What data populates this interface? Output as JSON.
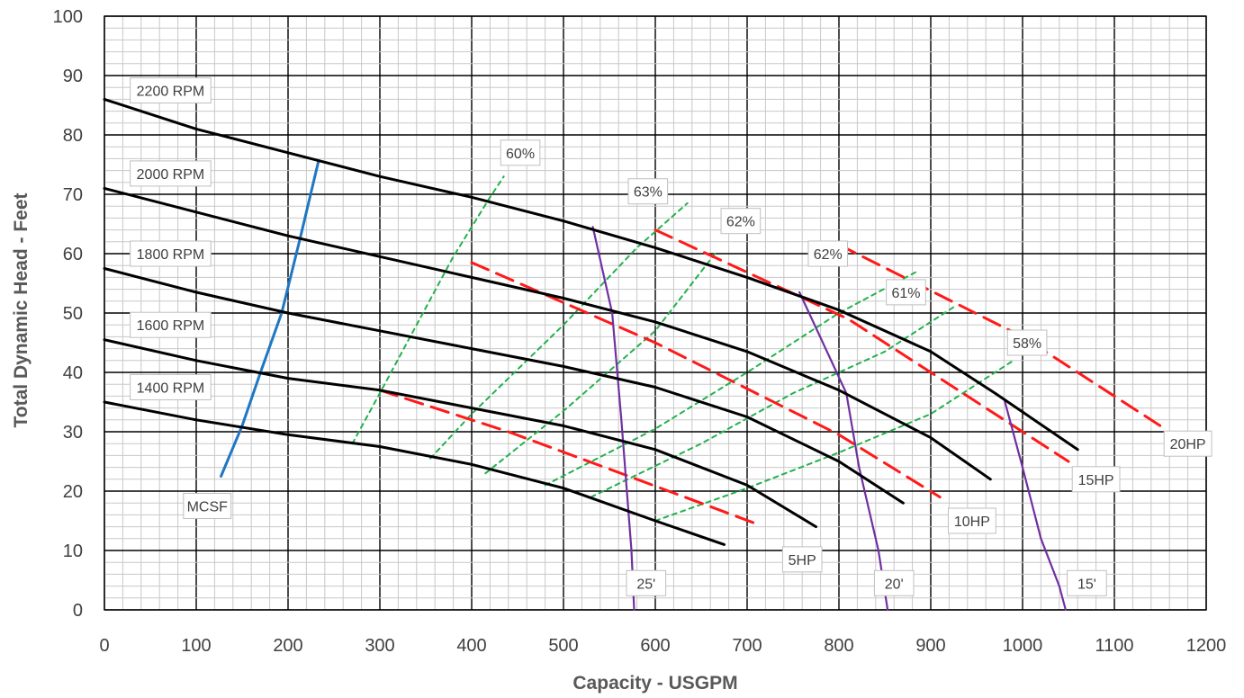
{
  "chart_data": {
    "type": "line",
    "title": "",
    "xlabel": "Capacity - USGPM",
    "ylabel": "Total Dynamic Head - Feet",
    "xlim": [
      0,
      1200
    ],
    "ylim": [
      0,
      100
    ],
    "xticks": [
      0,
      100,
      200,
      300,
      400,
      500,
      600,
      700,
      800,
      900,
      1000,
      1100,
      1200
    ],
    "yticks": [
      0,
      10,
      20,
      30,
      40,
      50,
      60,
      70,
      80,
      90,
      100
    ],
    "grid": true,
    "colors": {
      "rpm": "#000000",
      "mcsf": "#1f77c4",
      "efficiency": "#22b14c",
      "horsepower": "#ff1a1a",
      "npsh": "#7030a0"
    },
    "series": [
      {
        "group": "rpm",
        "name": "2200 RPM",
        "x": [
          0,
          100,
          200,
          300,
          400,
          500,
          600,
          700,
          800,
          900,
          970,
          1060
        ],
        "y": [
          86,
          81,
          77,
          73,
          69.5,
          65.5,
          61,
          56,
          50.5,
          43.5,
          36.5,
          27
        ]
      },
      {
        "group": "rpm",
        "name": "2000 RPM",
        "x": [
          0,
          100,
          200,
          300,
          400,
          500,
          600,
          700,
          800,
          900,
          965
        ],
        "y": [
          71,
          67,
          63,
          59.5,
          56,
          52.5,
          48.5,
          43.5,
          37,
          29,
          22
        ]
      },
      {
        "group": "rpm",
        "name": "1800 RPM",
        "x": [
          0,
          100,
          200,
          300,
          400,
          500,
          600,
          700,
          800,
          870
        ],
        "y": [
          57.5,
          53.5,
          50,
          47,
          44,
          41,
          37.5,
          32.5,
          25,
          18
        ]
      },
      {
        "group": "rpm",
        "name": "1600 RPM",
        "x": [
          0,
          100,
          200,
          300,
          400,
          500,
          600,
          700,
          775
        ],
        "y": [
          45.5,
          42,
          39,
          37,
          34,
          31,
          27,
          21,
          14
        ]
      },
      {
        "group": "rpm",
        "name": "1400 RPM",
        "x": [
          0,
          100,
          200,
          300,
          400,
          500,
          600,
          675
        ],
        "y": [
          35,
          32,
          29.5,
          27.5,
          24.5,
          20.5,
          15,
          11
        ]
      },
      {
        "group": "mcsf",
        "name": "MCSF",
        "x": [
          127,
          150,
          170,
          193,
          213,
          233
        ],
        "y": [
          22.5,
          31,
          40,
          50,
          62.5,
          75.5
        ]
      },
      {
        "group": "efficiency",
        "name": "60%",
        "x": [
          270,
          300,
          340,
          380,
          420,
          435
        ],
        "y": [
          28,
          36.5,
          48,
          59.5,
          69.5,
          73
        ]
      },
      {
        "group": "efficiency",
        "name": "63%",
        "x": [
          355,
          400,
          500,
          580,
          635
        ],
        "y": [
          25.5,
          33,
          48,
          61,
          68.5
        ]
      },
      {
        "group": "efficiency",
        "name": "62%",
        "x": [
          415,
          500,
          600,
          665
        ],
        "y": [
          23,
          33.5,
          47,
          60
        ]
      },
      {
        "group": "efficiency",
        "name": "62%",
        "x": [
          480,
          600,
          700,
          800,
          885
        ],
        "y": [
          21,
          30.5,
          40,
          50,
          57
        ]
      },
      {
        "group": "efficiency",
        "name": "61%",
        "x": [
          530,
          650,
          750,
          850,
          925
        ],
        "y": [
          19,
          28,
          36.5,
          43.5,
          51
        ]
      },
      {
        "group": "efficiency",
        "name": "58%",
        "x": [
          600,
          700,
          800,
          900,
          990
        ],
        "y": [
          15,
          20.5,
          26.5,
          33,
          42
        ]
      },
      {
        "group": "horsepower",
        "name": "5HP",
        "x": [
          300,
          440,
          580,
          710
        ],
        "y": [
          37,
          30,
          22,
          14.5
        ]
      },
      {
        "group": "horsepower",
        "name": "10HP",
        "x": [
          400,
          600,
          800,
          910
        ],
        "y": [
          58.5,
          45,
          29.5,
          19
        ]
      },
      {
        "group": "horsepower",
        "name": "15HP",
        "x": [
          600,
          810,
          1050
        ],
        "y": [
          64,
          49,
          25
        ]
      },
      {
        "group": "horsepower",
        "name": "20HP",
        "x": [
          800,
          1000,
          1155
        ],
        "y": [
          61.5,
          46,
          30.5
        ]
      },
      {
        "group": "npsh",
        "name": "25'",
        "x": [
          532,
          553,
          563,
          574,
          577
        ],
        "y": [
          64.5,
          50,
          32,
          10,
          0
        ]
      },
      {
        "group": "npsh",
        "name": "20'",
        "x": [
          757,
          808,
          822,
          843,
          853
        ],
        "y": [
          53.5,
          36.5,
          24,
          10,
          0
        ]
      },
      {
        "group": "npsh",
        "name": "15'",
        "x": [
          980,
          1000,
          1020,
          1040,
          1047
        ],
        "y": [
          35.5,
          24,
          12,
          4,
          0
        ]
      }
    ],
    "labels": [
      {
        "text": "2200 RPM",
        "x": 72,
        "y": 87.5
      },
      {
        "text": "2000 RPM",
        "x": 72,
        "y": 73.5
      },
      {
        "text": "1800 RPM",
        "x": 72,
        "y": 60
      },
      {
        "text": "1600 RPM",
        "x": 72,
        "y": 48
      },
      {
        "text": "1400 RPM",
        "x": 72,
        "y": 37.5
      },
      {
        "text": "MCSF",
        "x": 112,
        "y": 17.5
      },
      {
        "text": "60%",
        "x": 453,
        "y": 77
      },
      {
        "text": "63%",
        "x": 592,
        "y": 70.5
      },
      {
        "text": "62%",
        "x": 693,
        "y": 65.5
      },
      {
        "text": "62%",
        "x": 788,
        "y": 60
      },
      {
        "text": "61%",
        "x": 873,
        "y": 53.5
      },
      {
        "text": "58%",
        "x": 1005,
        "y": 45
      },
      {
        "text": "5HP",
        "x": 760,
        "y": 8.5
      },
      {
        "text": "10HP",
        "x": 945,
        "y": 15
      },
      {
        "text": "15HP",
        "x": 1080,
        "y": 22
      },
      {
        "text": "20HP",
        "x": 1180,
        "y": 28
      },
      {
        "text": "25'",
        "x": 590,
        "y": 4.5
      },
      {
        "text": "20'",
        "x": 860,
        "y": 4.5
      },
      {
        "text": "15'",
        "x": 1070,
        "y": 4.5
      }
    ]
  }
}
